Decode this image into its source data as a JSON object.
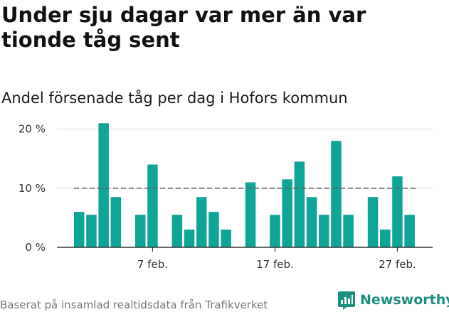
{
  "title": "Under sju dagar var mer än var tionde tåg sent",
  "subtitle": "Andel försenade tåg per dag i Hofors kommun",
  "footer": "Baserat på insamlad realtidsdata från Trafikverket",
  "brand": "Newsworthy",
  "colors": {
    "bar": "#0ea497",
    "reference_line": "#666666",
    "grid": "#dddddd",
    "axis": "#333333",
    "brand": "#1b8f80"
  },
  "chart_data": {
    "type": "bar",
    "x_start_day": 1,
    "days": 30,
    "values": [
      6,
      5.5,
      21,
      8.5,
      null,
      5.5,
      14,
      null,
      5.5,
      3,
      8.5,
      6,
      3,
      null,
      11,
      null,
      5.5,
      11.5,
      14.5,
      8.5,
      5.5,
      18,
      5.5,
      null,
      8.5,
      3,
      12,
      5.5,
      null,
      null
    ],
    "reference_line": 10,
    "ylim": [
      0,
      22
    ],
    "yticks": [
      0,
      10,
      20
    ],
    "ytick_labels": [
      "0 %",
      "10 %",
      "20 %"
    ],
    "xticks": [
      {
        "day": 7,
        "label": "7 feb."
      },
      {
        "day": 17,
        "label": "17 feb."
      },
      {
        "day": 27,
        "label": "27 feb."
      }
    ],
    "grid": true,
    "legend": "none"
  }
}
